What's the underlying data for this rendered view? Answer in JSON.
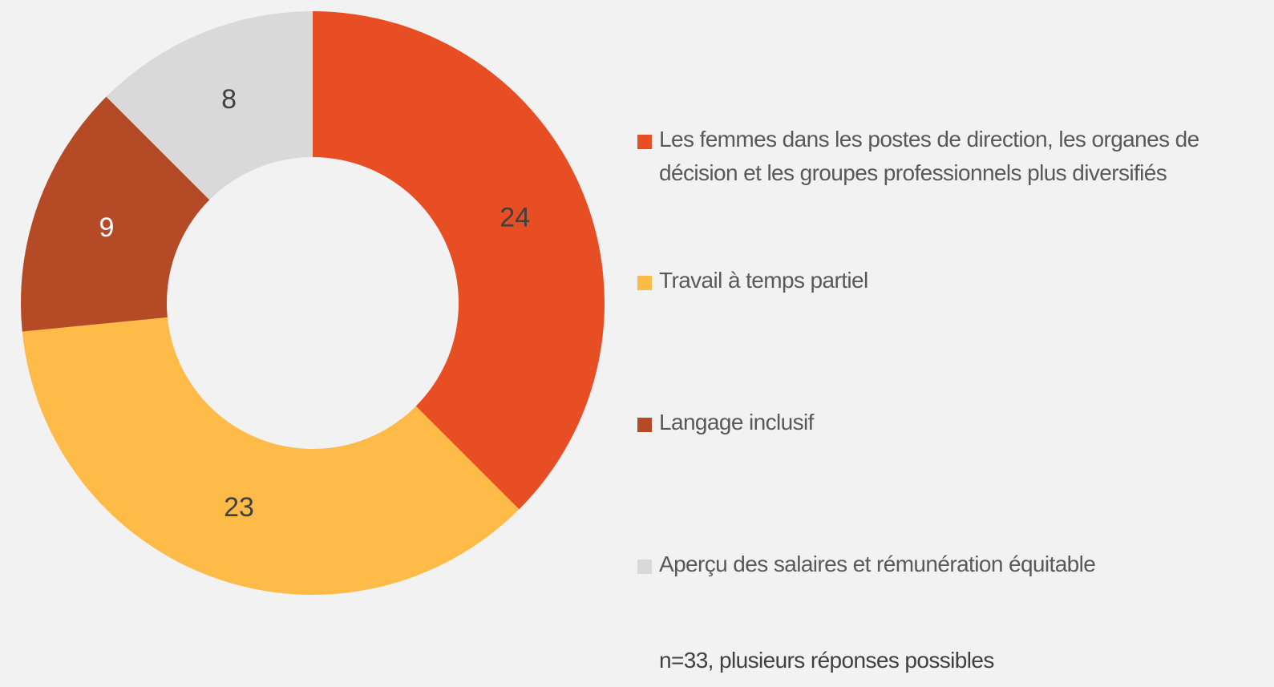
{
  "chart_data": {
    "type": "pie",
    "categories": [
      "Les femmes dans les postes de direction, les organes de décision et les groupes professionnels plus diversifiés",
      "Travail à temps partiel",
      "Langage inclusif",
      "Aperçu des salaires et rémunération équitable"
    ],
    "values": [
      24,
      23,
      9,
      8
    ],
    "colors": [
      "#e84e24",
      "#ffbb48",
      "#b54a26",
      "#d9d9d9"
    ],
    "label_colors": [
      "#404040",
      "#404040",
      "#ffffff",
      "#404040"
    ],
    "note": "n=33, plusieurs réponses possibles"
  }
}
